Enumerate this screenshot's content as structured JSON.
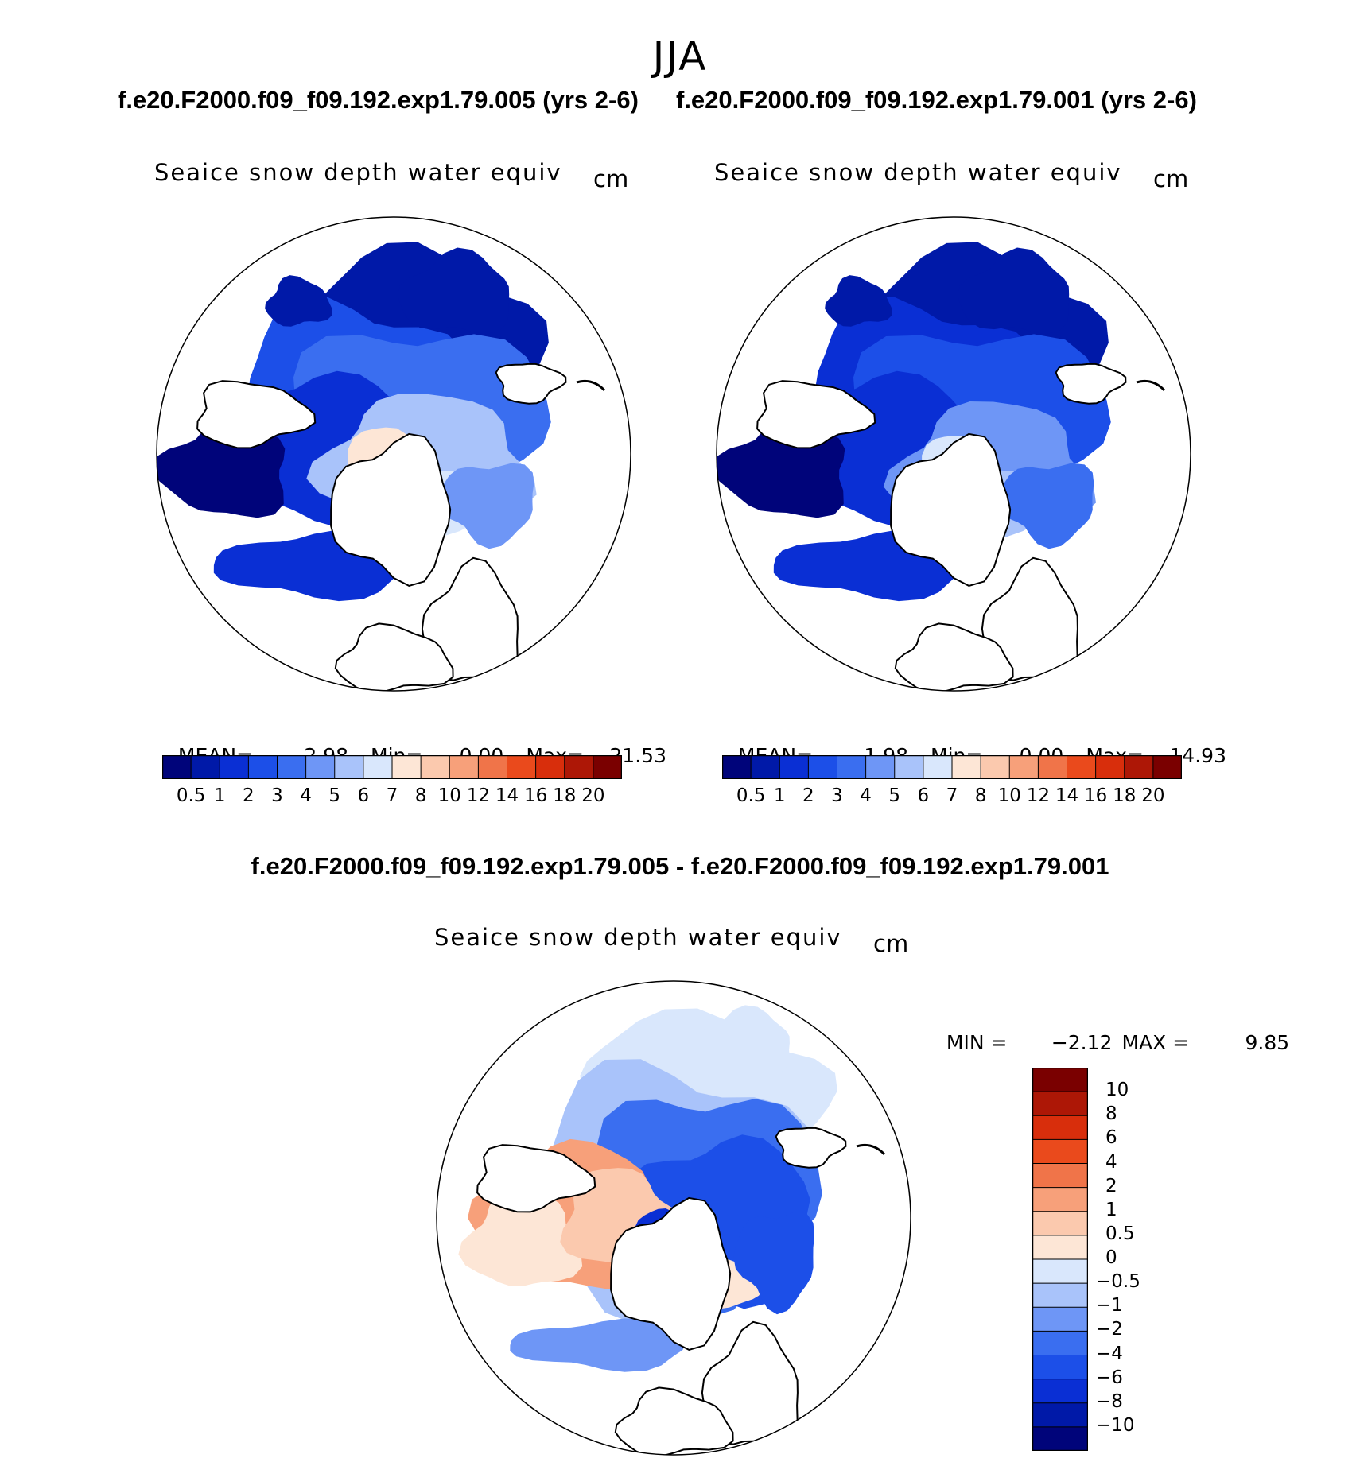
{
  "figure": {
    "season": "JJA",
    "left_case_title": "f.e20.F2000.f09_f09.192.exp1.79.005 (yrs 2-6)",
    "right_case_title": "f.e20.F2000.f09_f09.192.exp1.79.001 (yrs 2-6)",
    "diff_title": "f.e20.F2000.f09_f09.192.exp1.79.005 - f.e20.F2000.f09_f09.192.exp1.79.001"
  },
  "chart_data": [
    {
      "type": "heatmap",
      "projection": "north polar stereographic",
      "title": "Seaice snow depth water equiv",
      "units": "cm",
      "stats": {
        "mean_label": "MEAN=",
        "mean": "2.98",
        "min_label": "Min=",
        "min": "0.00",
        "max_label": "Max=",
        "max": "21.53"
      },
      "legend": {
        "placement": "bottom",
        "orientation": "horizontal"
      },
      "levels": [
        "0.5",
        "1",
        "2",
        "3",
        "4",
        "5",
        "6",
        "7",
        "8",
        "10",
        "12",
        "14",
        "16",
        "18",
        "20"
      ],
      "colors": [
        "#00047a",
        "#0019a8",
        "#0a2fd4",
        "#1c4fe8",
        "#3a6ef0",
        "#6e96f6",
        "#a9c3fa",
        "#d9e7fc",
        "#fde6d6",
        "#fbc9ae",
        "#f7a07a",
        "#f07449",
        "#ea4a1c",
        "#d82e0c",
        "#ad1706",
        "#7a0000"
      ]
    },
    {
      "type": "heatmap",
      "projection": "north polar stereographic",
      "title": "Seaice snow depth water equiv",
      "units": "cm",
      "stats": {
        "mean_label": "MEAN=",
        "mean": "1.98",
        "min_label": "Min=",
        "min": "0.00",
        "max_label": "Max=",
        "max": "14.93"
      },
      "legend": {
        "placement": "bottom",
        "orientation": "horizontal"
      },
      "levels": [
        "0.5",
        "1",
        "2",
        "3",
        "4",
        "5",
        "6",
        "7",
        "8",
        "10",
        "12",
        "14",
        "16",
        "18",
        "20"
      ],
      "colors": [
        "#00047a",
        "#0019a8",
        "#0a2fd4",
        "#1c4fe8",
        "#3a6ef0",
        "#6e96f6",
        "#a9c3fa",
        "#d9e7fc",
        "#fde6d6",
        "#fbc9ae",
        "#f7a07a",
        "#f07449",
        "#ea4a1c",
        "#d82e0c",
        "#ad1706",
        "#7a0000"
      ]
    },
    {
      "type": "heatmap",
      "projection": "north polar stereographic",
      "title": "Seaice snow depth water equiv",
      "units": "cm",
      "stats": {
        "min_label": "MIN =",
        "min": "−2.12",
        "max_label": "MAX =",
        "max": "9.85"
      },
      "legend": {
        "placement": "right",
        "orientation": "vertical"
      },
      "levels": [
        "10",
        "8",
        "6",
        "4",
        "2",
        "1",
        "0.5",
        "0",
        "−0.5",
        "−1",
        "−2",
        "−4",
        "−6",
        "−8",
        "−10"
      ],
      "colors": [
        "#7a0000",
        "#ad1706",
        "#d82e0c",
        "#ea4a1c",
        "#f07449",
        "#f7a07a",
        "#fbc9ae",
        "#fde6d6",
        "#d9e7fc",
        "#a9c3fa",
        "#6e96f6",
        "#3a6ef0",
        "#1c4fe8",
        "#0a2fd4",
        "#0019a8",
        "#00047a"
      ]
    }
  ]
}
